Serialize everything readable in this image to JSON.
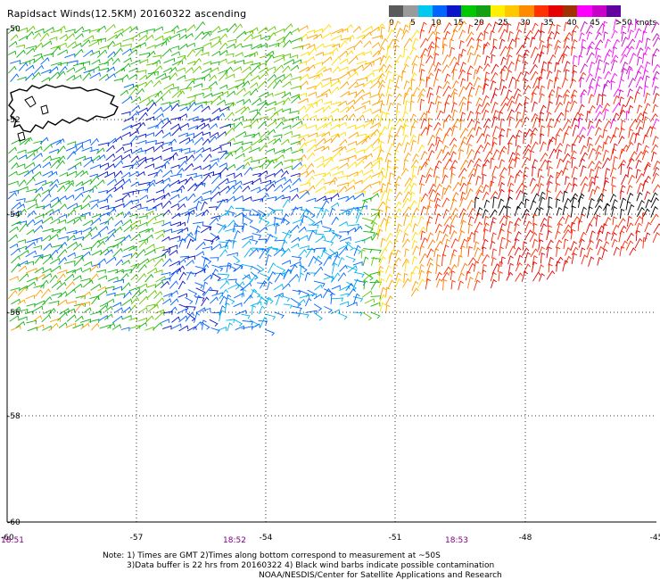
{
  "title": "Rapidsact Winds(12.5KM) 20160322 ascending",
  "legend": {
    "colors": [
      "#5a5a5a",
      "#9a9a9a",
      "#00c8f0",
      "#0064ff",
      "#0a14c8",
      "#00c800",
      "#14a014",
      "#fff000",
      "#ffc800",
      "#ff8c00",
      "#ff3200",
      "#e60000",
      "#a03200",
      "#ff00ff",
      "#c800c8",
      "#6400a0"
    ],
    "labels": [
      "0",
      "5",
      "10",
      "15",
      "20",
      "25",
      "30",
      "35",
      "40",
      "45",
      ">50 knots"
    ]
  },
  "axes": {
    "lat_labels": [
      "-50",
      "-52",
      "-54",
      "-56",
      "-58",
      "-60"
    ],
    "lon_labels": [
      "-60",
      "-57",
      "-54",
      "-51",
      "-48",
      "-45"
    ]
  },
  "times": [
    "18:51",
    "18:52",
    "18:53"
  ],
  "notes": [
    "Note: 1) Times are GMT 2)Times along bottom correspond to measurement at ~50S",
    "3)Data buffer is 22 hrs from 20160322 4) Black wind barbs indicate possible contamination",
    "NOAA/NESDIS/Center for Satellite Applications and Research"
  ]
}
